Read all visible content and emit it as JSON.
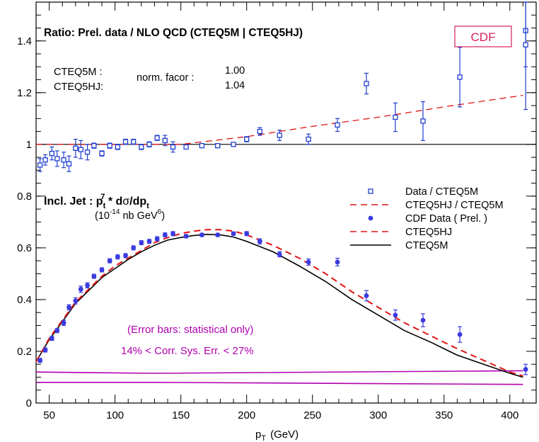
{
  "chart_data": {
    "type": "scatter",
    "xlabel_main": "p",
    "xlabel_sub": "T",
    "xlabel_unit": "(GeV)",
    "xlim": [
      40,
      420
    ],
    "ylim": [
      0,
      1.55
    ],
    "x_ticks": [
      50,
      100,
      150,
      200,
      250,
      300,
      350,
      400
    ],
    "y_ticks": [
      0,
      0.2,
      0.4,
      0.6,
      0.8,
      1,
      1.2,
      1.4
    ],
    "y_tick_labels": [
      "0",
      "0.2",
      "0.4",
      "0.6",
      "0.8",
      "1",
      "1.2",
      "1.4"
    ],
    "colors": {
      "ratio_points": "#1f3ecf",
      "cdf_points": "#3a3ae0",
      "cteq5hj": "#e01414",
      "cteq5m": "#000000",
      "error_band": "#b000b0",
      "cdf_box": "#d6205a"
    },
    "text": {
      "ratio_title": "Ratio: Prel. data / NLO QCD (CTEQ5M | CTEQ5HJ)",
      "cdf_label": "CDF",
      "norm_label_1": "CTEQ5M :",
      "norm_label_2": "CTEQ5HJ:",
      "norm_factor_label": "norm. facor :",
      "norm_value_1": "1.00",
      "norm_value_2": "1.04",
      "incl_jet_main": "Incl. Jet  : p",
      "incl_jet_sub": "t",
      "incl_jet_sup": "7",
      "incl_jet_rest": " * d",
      "incl_jet_sigma": "σ",
      "incl_jet_dp": "/dp",
      "incl_jet_dp_sub": "t",
      "units_1": "(10",
      "units_sup1": "-14",
      "units_2": " nb GeV",
      "units_sup2": "6",
      "units_3": ")",
      "error_note_1": "(Error bars: statistical only)",
      "error_note_2": "14% < Corr. Sys. Err. < 27%"
    },
    "legend": [
      {
        "label": "Data / CTEQ5M",
        "style": "open-square"
      },
      {
        "label": "CTEQ5HJ / CTEQ5M",
        "style": "dashed-red"
      },
      {
        "label": "CDF Data ( Prel. )",
        "style": "filled-circle"
      },
      {
        "label": "CTEQ5HJ",
        "style": "dashed-red"
      },
      {
        "label": "CTEQ5M",
        "style": "solid-black"
      }
    ],
    "ratio_data": {
      "x": [
        43,
        47,
        52,
        56,
        61,
        65,
        70,
        74,
        79,
        84,
        90,
        96,
        102,
        108,
        114,
        120,
        126,
        132,
        138,
        144,
        154,
        166,
        178,
        190,
        200,
        210,
        225,
        247,
        269,
        291,
        313,
        334,
        362,
        412
      ],
      "y": [
        0.92,
        0.94,
        0.965,
        0.945,
        0.94,
        0.925,
        0.985,
        0.98,
        0.97,
        0.995,
        0.965,
        0.995,
        0.99,
        1.01,
        1.01,
        0.99,
        1.0,
        1.025,
        1.015,
        0.99,
        0.99,
        0.995,
        0.995,
        1.0,
        1.02,
        1.05,
        1.035,
        1.02,
        1.075,
        1.235,
        1.105,
        1.09,
        1.26,
        1.44
      ],
      "err": [
        0.025,
        0.02,
        0.025,
        0.03,
        0.03,
        0.03,
        0.035,
        0.035,
        0.03,
        0.01,
        0.01,
        0.01,
        0.01,
        0.01,
        0.01,
        0.01,
        0.01,
        0.01,
        0.02,
        0.02,
        0.005,
        0.005,
        0.005,
        0.005,
        0.01,
        0.015,
        0.02,
        0.02,
        0.025,
        0.04,
        0.055,
        0.075,
        0.115,
        0.14
      ]
    },
    "ratio_extra_point": {
      "x": 412,
      "y": 1.385,
      "err": 0.25
    },
    "cdf_data": {
      "x": [
        43,
        47,
        52,
        56,
        61,
        65,
        70,
        74,
        79,
        84,
        90,
        96,
        102,
        108,
        114,
        120,
        126,
        132,
        138,
        144,
        154,
        166,
        178,
        190,
        200,
        210,
        225,
        247,
        269,
        291,
        313,
        334,
        362,
        412
      ],
      "y": [
        0.165,
        0.205,
        0.25,
        0.28,
        0.31,
        0.37,
        0.395,
        0.44,
        0.455,
        0.49,
        0.515,
        0.55,
        0.565,
        0.57,
        0.6,
        0.62,
        0.625,
        0.635,
        0.65,
        0.655,
        0.645,
        0.65,
        0.65,
        0.655,
        0.655,
        0.625,
        0.575,
        0.545,
        0.545,
        0.415,
        0.34,
        0.32,
        0.265,
        0.13
      ],
      "err": [
        0.008,
        0.008,
        0.008,
        0.008,
        0.01,
        0.01,
        0.012,
        0.012,
        0.01,
        0.008,
        0.008,
        0.008,
        0.008,
        0.008,
        0.008,
        0.008,
        0.008,
        0.008,
        0.008,
        0.008,
        0.006,
        0.006,
        0.006,
        0.006,
        0.008,
        0.01,
        0.01,
        0.012,
        0.015,
        0.02,
        0.02,
        0.025,
        0.03,
        0.02
      ]
    },
    "cteq5hj_curve": {
      "x": [
        40,
        50,
        60,
        70,
        80,
        90,
        100,
        110,
        120,
        130,
        140,
        150,
        160,
        170,
        180,
        190,
        200,
        220,
        240,
        260,
        280,
        300,
        320,
        340,
        360,
        380,
        400,
        410
      ],
      "y": [
        0.16,
        0.25,
        0.32,
        0.39,
        0.44,
        0.49,
        0.53,
        0.56,
        0.59,
        0.62,
        0.64,
        0.655,
        0.665,
        0.67,
        0.67,
        0.665,
        0.65,
        0.61,
        0.56,
        0.5,
        0.43,
        0.37,
        0.31,
        0.26,
        0.21,
        0.165,
        0.12,
        0.105
      ]
    },
    "cteq5m_curve": {
      "x": [
        40,
        50,
        60,
        70,
        80,
        90,
        100,
        110,
        120,
        130,
        140,
        150,
        160,
        170,
        180,
        190,
        200,
        220,
        240,
        260,
        280,
        300,
        320,
        340,
        360,
        380,
        400,
        410
      ],
      "y": [
        0.16,
        0.245,
        0.315,
        0.385,
        0.435,
        0.485,
        0.52,
        0.555,
        0.585,
        0.61,
        0.63,
        0.64,
        0.648,
        0.652,
        0.65,
        0.642,
        0.625,
        0.585,
        0.53,
        0.47,
        0.4,
        0.34,
        0.28,
        0.235,
        0.185,
        0.15,
        0.115,
        0.1
      ]
    },
    "ratio_dashed_curve": {
      "x": [
        40,
        150,
        200,
        250,
        300,
        350,
        410
      ],
      "y": [
        1.0,
        1.0,
        1.03,
        1.07,
        1.105,
        1.145,
        1.19
      ]
    },
    "unity_line": {
      "x": [
        40,
        420
      ],
      "y": [
        1.0,
        1.0
      ]
    },
    "band_upper": {
      "x": [
        40,
        130,
        410
      ],
      "y": [
        0.12,
        0.115,
        0.125
      ]
    },
    "band_lower": {
      "x": [
        40,
        130,
        410
      ],
      "y": [
        0.08,
        0.08,
        0.072
      ]
    }
  }
}
